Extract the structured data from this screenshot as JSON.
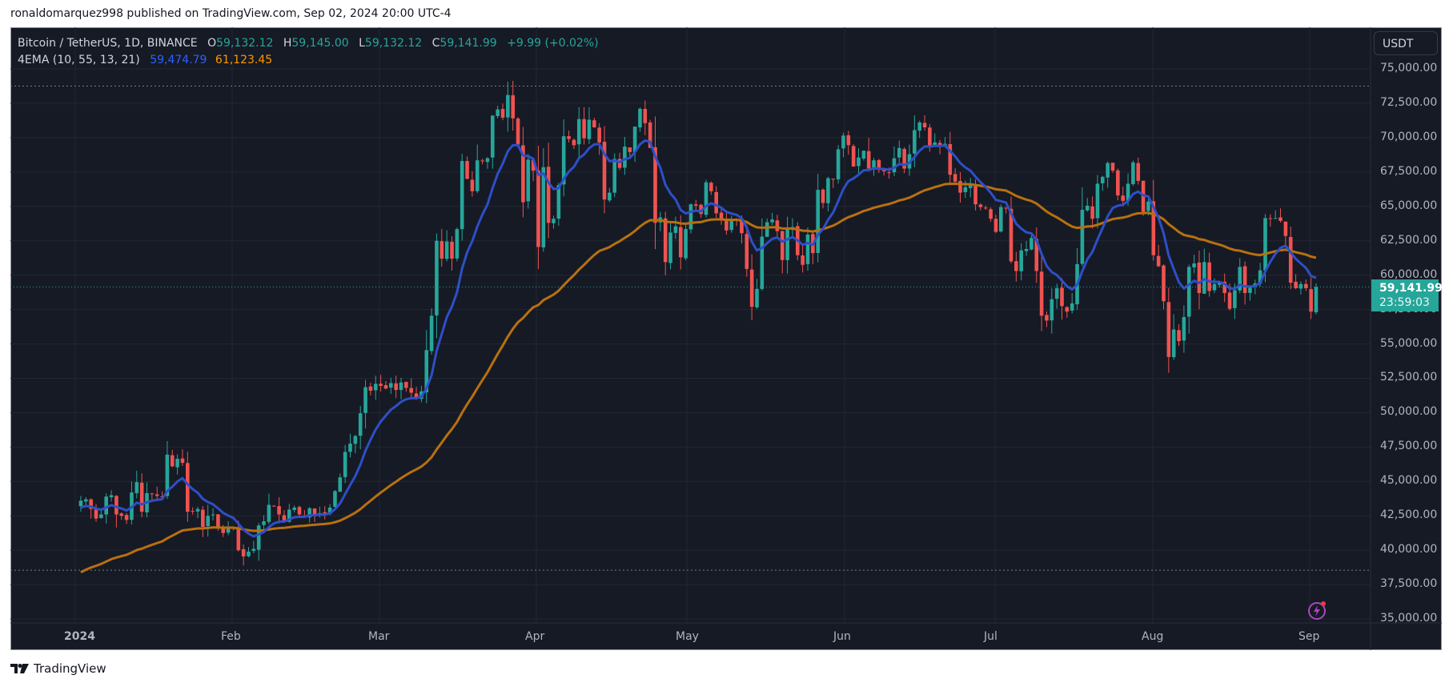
{
  "header": {
    "publish_text": "ronaldomarquez998 published on TradingView.com, Sep 02, 2024 20:00 UTC-4"
  },
  "legend": {
    "symbol": "Bitcoin / TetherUS, 1D, BINANCE",
    "open_label": "O",
    "open": "59,132.12",
    "high_label": "H",
    "high": "59,145.00",
    "low_label": "L",
    "low": "59,132.12",
    "close_label": "C",
    "close": "59,141.99",
    "change": "+9.99 (+0.02%)",
    "indicator": "4EMA (10, 55, 13, 21)",
    "ema_fast": "59,474.79",
    "ema_slow": "61,123.45"
  },
  "price_axis": {
    "currency": "USDT",
    "current_price": "59,141.99",
    "countdown": "23:59:03",
    "ticks": [
      "75,000.00",
      "72,500.00",
      "70,000.00",
      "67,500.00",
      "65,000.00",
      "62,500.00",
      "60,000.00",
      "57,500.00",
      "55,000.00",
      "52,500.00",
      "50,000.00",
      "47,500.00",
      "45,000.00",
      "42,500.00",
      "40,000.00",
      "37,500.00",
      "35,000.00"
    ]
  },
  "time_axis": {
    "labels": [
      "2024",
      "Feb",
      "Mar",
      "Apr",
      "May",
      "Jun",
      "Jul",
      "Aug",
      "Sep"
    ]
  },
  "footer": {
    "brand": "TradingView"
  },
  "colors": {
    "up": "#26a69a",
    "down": "#ef5350",
    "ema_fast": "#2e4fc7",
    "ema_slow": "#b8700f",
    "background": "#161a25",
    "grid": "#232735"
  },
  "chart_data": {
    "type": "candlestick",
    "title": "Bitcoin / TetherUS, 1D, BINANCE",
    "ylabel": "USDT",
    "ylim": [
      35000,
      75000
    ],
    "x_range": [
      "2023-12-22",
      "2024-09-02"
    ],
    "hlines_dotted": [
      73750,
      38550
    ],
    "monthly_closes_approx": {
      "categories": [
        "Jan-01",
        "Feb-01",
        "Mar-01",
        "Apr-01",
        "May-01",
        "Jun-01",
        "Jul-01",
        "Aug-01",
        "Sep-01",
        "Sep-02"
      ],
      "values": [
        44200,
        43100,
        62400,
        69700,
        58300,
        67750,
        62900,
        65400,
        57300,
        59142
      ]
    },
    "closes": [
      43600,
      43700,
      43000,
      42300,
      42600,
      43900,
      44000,
      42600,
      42500,
      42200,
      44200,
      44950,
      42800,
      44150,
      44100,
      43950,
      43900,
      46950,
      46100,
      46650,
      46350,
      42800,
      42850,
      43000,
      41700,
      42500,
      42600,
      41700,
      41250,
      41600,
      41650,
      40000,
      39550,
      39900,
      40100,
      41800,
      42100,
      43300,
      43200,
      42600,
      42100,
      42950,
      43100,
      42600,
      42400,
      43050,
      42600,
      42700,
      42650,
      43100,
      44300,
      45300,
      47150,
      47750,
      48300,
      49950,
      51850,
      51600,
      52100,
      51950,
      51750,
      52150,
      51650,
      52200,
      51800,
      51450,
      51050,
      51550,
      54550,
      57050,
      62500,
      61200,
      62450,
      61200,
      63350,
      68300,
      67000,
      66100,
      68350,
      68300,
      68500,
      71600,
      72050,
      71450,
      73100,
      71400,
      69500,
      65300,
      68400,
      67600,
      62050,
      67850,
      63800,
      64100,
      66550,
      70100,
      69900,
      69450,
      71350,
      69950,
      71300,
      70750,
      69650,
      65500,
      66000,
      68450,
      67800,
      69350,
      68950,
      70800,
      72100,
      71050,
      69250,
      63800,
      64200,
      60950,
      63100,
      63550,
      61300,
      63350,
      65150,
      65050,
      64450,
      66750,
      66100,
      64500,
      64050,
      63250,
      63950,
      63950,
      63050,
      60450,
      57700,
      59000,
      62800,
      63850,
      64050,
      63200,
      61100,
      63350,
      63500,
      61450,
      60750,
      62950,
      61600,
      66200,
      65250,
      67050,
      66950,
      69150,
      70150,
      69450,
      67900,
      68550,
      69050,
      67750,
      68350,
      67650,
      67550,
      67450,
      68500,
      69250,
      67750,
      68800,
      70550,
      71100,
      70750,
      69300,
      69650,
      69350,
      69550,
      67300,
      66800,
      66000,
      66400,
      66550,
      65150,
      64950,
      64850,
      64100,
      63150,
      64950,
      64850,
      61000,
      60300,
      61800,
      61900,
      62700,
      60300,
      57050,
      56700,
      58250,
      59050,
      57750,
      57350,
      57950,
      60800,
      64750,
      65050,
      64100,
      66650,
      67150,
      68150,
      67600,
      65800,
      65400,
      66650,
      68200,
      66850,
      64600,
      65350,
      61450,
      60650,
      58100,
      54050,
      56050,
      55200,
      56950,
      60600,
      60850,
      58700,
      60950,
      58850,
      59350,
      59500,
      58700,
      57550,
      58900,
      60600,
      58700,
      59100,
      59400,
      60350,
      64150,
      64100,
      64150,
      63950,
      62850,
      59450,
      59050,
      59350,
      59050,
      57350,
      59142
    ]
  }
}
